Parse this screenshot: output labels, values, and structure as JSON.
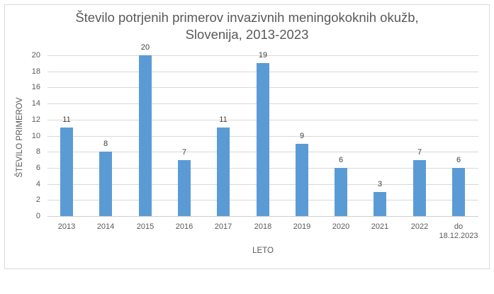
{
  "chart_data": {
    "type": "bar",
    "title": "Število potrjenih primerov invazivnih meningokoknih okužb, Slovenija, 2013-2023",
    "title_lines": [
      "Število potrjenih primerov invazivnih meningokoknih okužb,",
      "Slovenija, 2013-2023"
    ],
    "xlabel": "LETO",
    "ylabel": "ŠTEVILO PRIMEROV",
    "categories": [
      "2013",
      "2014",
      "2015",
      "2016",
      "2017",
      "2018",
      "2019",
      "2020",
      "2021",
      "2022",
      "do 18.12.2023"
    ],
    "category_lines": [
      [
        "2013"
      ],
      [
        "2014"
      ],
      [
        "2015"
      ],
      [
        "2016"
      ],
      [
        "2017"
      ],
      [
        "2018"
      ],
      [
        "2019"
      ],
      [
        "2020"
      ],
      [
        "2021"
      ],
      [
        "2022"
      ],
      [
        "do",
        "18.12.2023"
      ]
    ],
    "values": [
      11,
      8,
      20,
      7,
      11,
      19,
      9,
      6,
      3,
      7,
      6
    ],
    "ylim": [
      0,
      20
    ],
    "yticks": [
      0,
      2,
      4,
      6,
      8,
      10,
      12,
      14,
      16,
      18,
      20
    ],
    "grid": true,
    "legend": null,
    "data_labels": true,
    "bar_color": "#5b9bd5"
  }
}
